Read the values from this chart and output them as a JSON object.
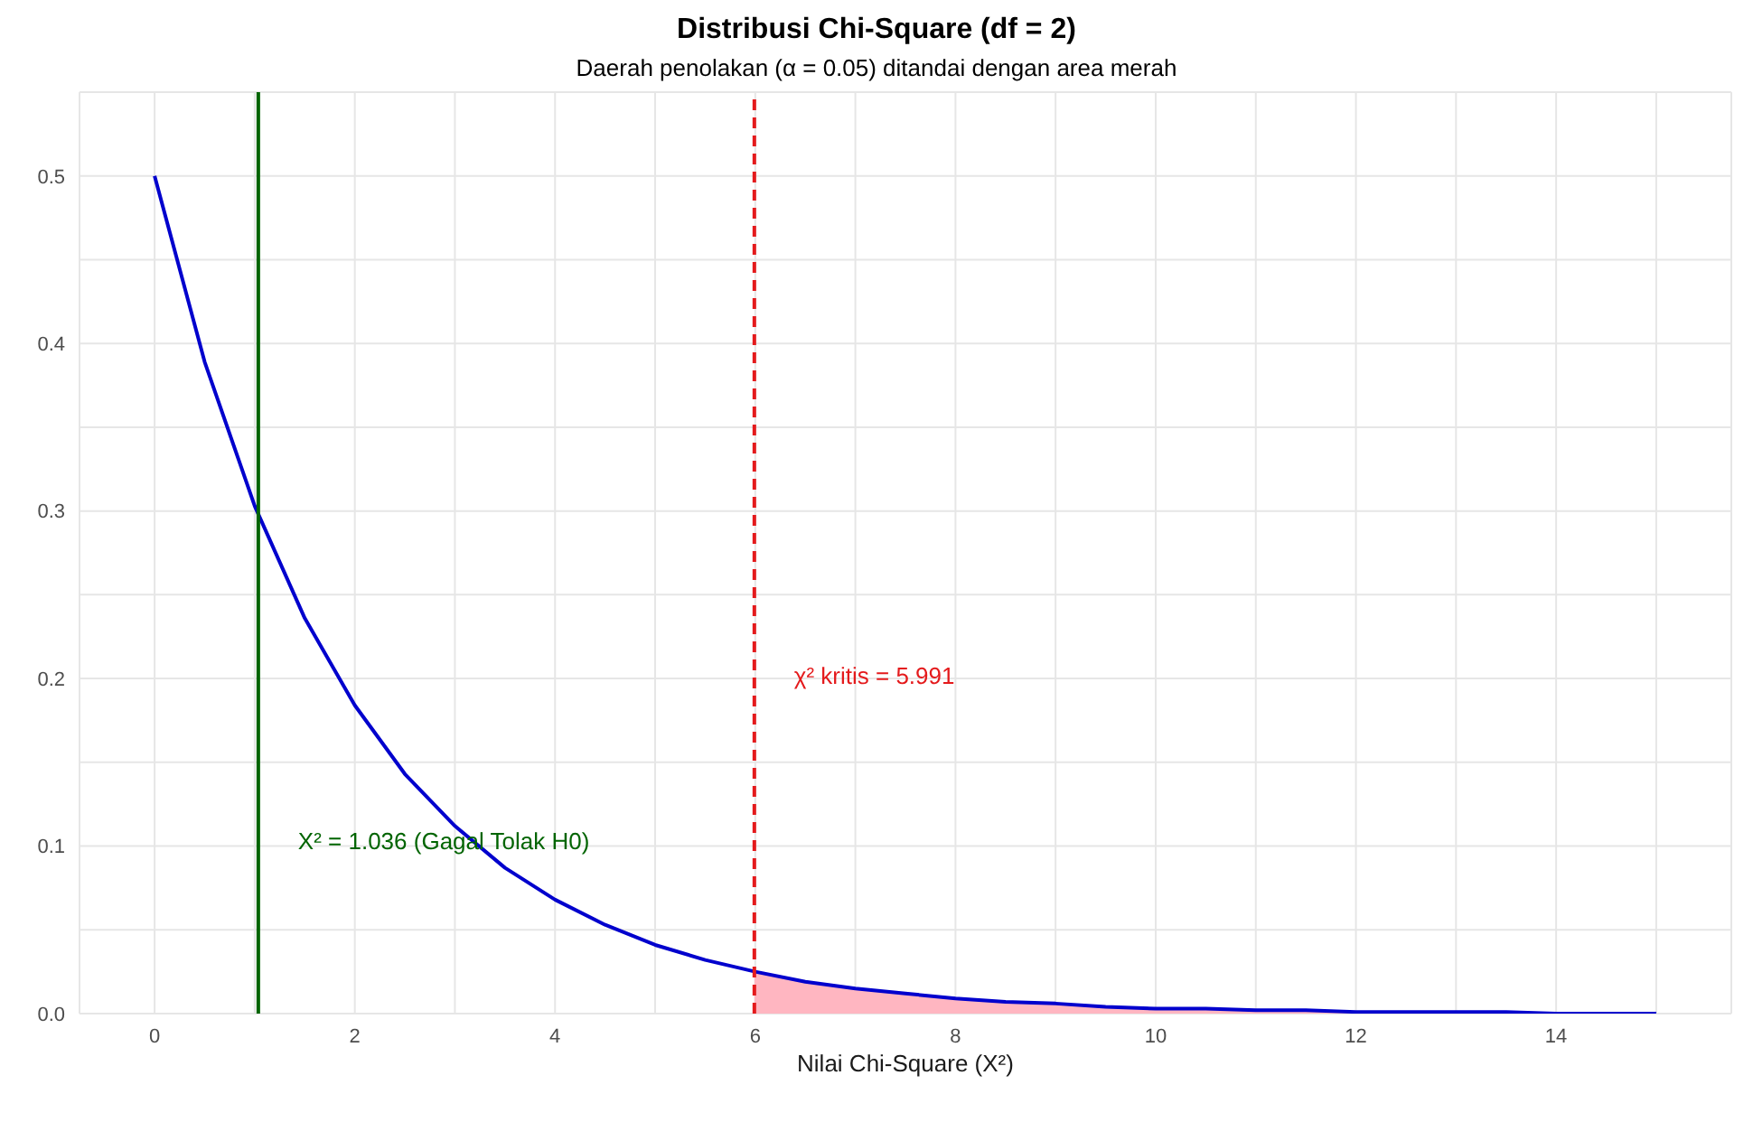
{
  "chart_data": {
    "type": "line",
    "title": "Distribusi Chi-Square (df = 2)",
    "subtitle": "Daerah penolakan (α = 0.05) ditandai dengan area merah",
    "xlabel": "Nilai Chi-Square (X²)",
    "series": [
      {
        "color": "#0000cd",
        "x": [
          0,
          0.5,
          1,
          1.5,
          2,
          2.5,
          3,
          3.5,
          4,
          4.5,
          5,
          5.5,
          6,
          6.5,
          7,
          7.5,
          8,
          8.5,
          9,
          9.5,
          10,
          10.5,
          11,
          11.5,
          12,
          12.5,
          13,
          13.5,
          14,
          14.5,
          15
        ],
        "values": [
          0.5,
          0.389,
          0.303,
          0.236,
          0.184,
          0.143,
          0.112,
          0.087,
          0.068,
          0.053,
          0.041,
          0.032,
          0.025,
          0.019,
          0.015,
          0.012,
          0.009,
          0.007,
          0.006,
          0.004,
          0.003,
          0.003,
          0.002,
          0.002,
          0.001,
          0.001,
          0.001,
          0.001,
          0,
          0,
          0
        ]
      },
      {
        "type": "area",
        "color": "#ffb6c1",
        "x": [
          5.991,
          6.5,
          7,
          7.5,
          8,
          8.5,
          9,
          9.5,
          10,
          11,
          12,
          13,
          14,
          15
        ],
        "values": [
          0.025,
          0.019,
          0.015,
          0.012,
          0.009,
          0.007,
          0.006,
          0.004,
          0.003,
          0.002,
          0.001,
          0.001,
          0,
          0
        ]
      }
    ],
    "xlim": [
      -0.75,
      15.75
    ],
    "ylim": [
      0,
      0.55
    ],
    "xticks": [
      0,
      {
        "value": 1,
        "label": null
      },
      2,
      {
        "value": 3,
        "label": null
      },
      4,
      {
        "value": 5,
        "label": null
      },
      6,
      {
        "value": 7,
        "label": null
      },
      8,
      {
        "value": 9,
        "label": null
      },
      10,
      {
        "value": 11,
        "label": null
      },
      12,
      {
        "value": 13,
        "label": null
      },
      14,
      {
        "value": 15,
        "label": null
      }
    ],
    "yticks": [
      {
        "value": 0,
        "label": "0.0"
      },
      {
        "value": 0.05,
        "label": null
      },
      0.1,
      {
        "value": 0.15,
        "label": null
      },
      0.2,
      {
        "value": 0.25,
        "label": null
      },
      0.3,
      {
        "value": 0.35,
        "label": null
      },
      0.4,
      {
        "value": 0.45,
        "label": null
      },
      0.5
    ],
    "grid": true,
    "legend": false,
    "marker": "none",
    "line_style": "solid",
    "ref_lines": [
      {
        "axis": "x",
        "value": 1.036,
        "color": "#006400",
        "line_style": "solid",
        "label": "X² = 1.036 (Gagal Tolak H0)"
      },
      {
        "axis": "x",
        "value": 5.991,
        "color": "#e41a1c",
        "line_style": "dashed",
        "label": "χ² kritis = 5.991"
      }
    ]
  }
}
